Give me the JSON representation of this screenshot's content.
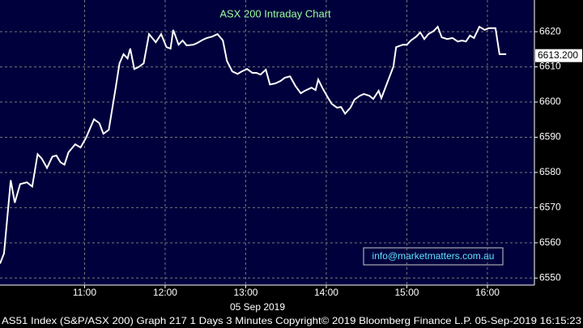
{
  "chart_data": {
    "type": "line",
    "title": "ASX 200 Intraday Chart",
    "x_axis_label": "05 Sep 2019",
    "footer": "AS51 Index (S&P/ASX 200) Graph 217 1 Days 3 Minutes Copyright© 2019 Bloomberg Finance L.P. 05-Sep-2019 16:15:23",
    "watermark": "info@marketmatters.com.au",
    "color": "#ffffff",
    "grid": true,
    "x": [
      597,
      600,
      605,
      608,
      612,
      617,
      621,
      625,
      628,
      632,
      636,
      639,
      642,
      645,
      648,
      653,
      657,
      661,
      667,
      671,
      674,
      678,
      683,
      686,
      689,
      692,
      694,
      697,
      700,
      704,
      708,
      713,
      717,
      721,
      724,
      726,
      730,
      733,
      736,
      741,
      744,
      748,
      751,
      755,
      759,
      763,
      766,
      770,
      774,
      777,
      781,
      785,
      788,
      791,
      795,
      798,
      802,
      806,
      809,
      813,
      817,
      821,
      824,
      829,
      832,
      834,
      837,
      841,
      844,
      848,
      851,
      854,
      858,
      861,
      865,
      868,
      872,
      875,
      879,
      881,
      884,
      887,
      890,
      892,
      897,
      900,
      903,
      907,
      910,
      913,
      916,
      920,
      923,
      926,
      930,
      934,
      938,
      941,
      944,
      947,
      950,
      954,
      958,
      961,
      966,
      969,
      974
    ],
    "values": [
      6554.1,
      6557,
      6577.8,
      6571.4,
      6576.7,
      6577.2,
      6576,
      6585.2,
      6584,
      6581.3,
      6584.5,
      6584.8,
      6582.9,
      6582.2,
      6585.7,
      6588,
      6587.1,
      6589.8,
      6595.1,
      6594,
      6591,
      6592.1,
      6603.7,
      6611,
      6613.6,
      6612.4,
      6615.2,
      6609.4,
      6609.9,
      6611,
      6619.3,
      6617,
      6619.3,
      6615.6,
      6615.2,
      6620.5,
      6616.3,
      6617.5,
      6616.1,
      6616.3,
      6616.8,
      6617.7,
      6618.2,
      6618.6,
      6619.3,
      6617.5,
      6611.7,
      6608.7,
      6608,
      6608.7,
      6609.4,
      6608.3,
      6608.3,
      6607.8,
      6609.2,
      6605,
      6605.3,
      6606,
      6606.9,
      6607.3,
      6604.6,
      6602.5,
      6603.2,
      6604.1,
      6603.4,
      6606.4,
      6604.1,
      6601.4,
      6599.5,
      6598.4,
      6598.6,
      6596.7,
      6598.4,
      6600.7,
      6601.8,
      6602.3,
      6601.8,
      6600.9,
      6603.2,
      6601.1,
      6604.1,
      6607.1,
      6610.1,
      6615.6,
      6616.3,
      6616.3,
      6617.5,
      6618.6,
      6619.8,
      6617.9,
      6619.3,
      6620.2,
      6621.4,
      6618.4,
      6617.9,
      6618.2,
      6617.2,
      6617.5,
      6617.2,
      6618.9,
      6618.2,
      6621.4,
      6620.5,
      6621,
      6621,
      6613.6,
      6613.6
    ],
    "last_price": {
      "value": 6613.2,
      "label": "6613.200"
    },
    "xlim": [
      597,
      995
    ],
    "xticks": [
      {
        "value": 660,
        "label": "11:00"
      },
      {
        "value": 720,
        "label": "12:00"
      },
      {
        "value": 780,
        "label": "13:00"
      },
      {
        "value": 840,
        "label": "14:00"
      },
      {
        "value": 900,
        "label": "15:00"
      },
      {
        "value": 960,
        "label": "16:00"
      }
    ],
    "ylim": [
      6548,
      6629
    ],
    "yticks": [
      6550,
      6560,
      6570,
      6580,
      6590,
      6600,
      6610,
      6620
    ]
  }
}
